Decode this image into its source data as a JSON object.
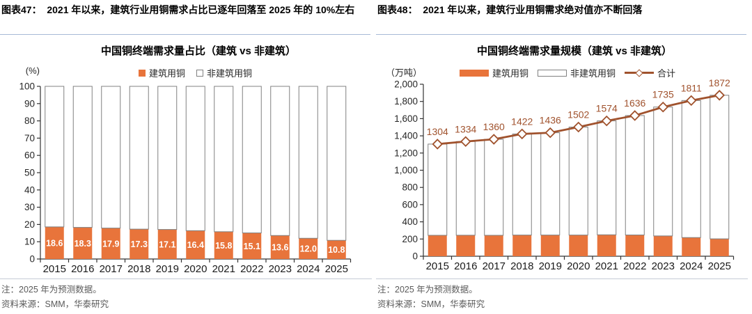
{
  "panels": [
    {
      "header": "图表47：  2021 年以来，建筑行业用铜需求占比已逐年回落至 2025 年的 10%左右",
      "chart_title": "中国铜终端需求量占比（建筑 vs 非建筑）",
      "unit_label": "(%)",
      "legend": [
        {
          "label": "建筑用铜"
        },
        {
          "label": "非建筑用铜"
        }
      ],
      "note": "注：2025 年为预测数据。",
      "source": "资料来源：SMM，华泰研究"
    },
    {
      "header": "图表48：  2021 年以来，建筑行业用铜需求绝对值亦不断回落",
      "chart_title": "中国铜终端需求量规模（建筑 vs 非建筑）",
      "unit_label": "（万吨）",
      "legend": [
        {
          "label": "建筑用铜"
        },
        {
          "label": "非建筑用铜"
        },
        {
          "label": "合计"
        }
      ],
      "note": "注：2025 年为预测数据。",
      "source": "资料来源：SMM，华泰研究"
    }
  ],
  "colors": {
    "construction_orange": "#E8743B",
    "bar_outline_gray": "#808080",
    "total_line_brown": "#A0522D",
    "header_rule_blue": "#A6BAD6",
    "note_rule_gray": "#C5CBD6",
    "axis_dark": "#333333",
    "tick_text": "#262626",
    "bar_label_white": "#FFFFFF"
  },
  "chart_data": [
    {
      "type": "bar",
      "variant": "stacked-100pct",
      "title": "中国铜终端需求量占比（建筑 vs 非建筑）",
      "categories": [
        "2015",
        "2016",
        "2017",
        "2018",
        "2019",
        "2020",
        "2021",
        "2022",
        "2023",
        "2024",
        "2025"
      ],
      "series": [
        {
          "name": "建筑用铜",
          "values": [
            18.6,
            18.3,
            17.9,
            17.3,
            17.1,
            16.4,
            15.8,
            15.1,
            13.6,
            12.0,
            10.8
          ]
        },
        {
          "name": "非建筑用铜",
          "values": [
            81.4,
            81.7,
            82.1,
            82.7,
            82.9,
            83.6,
            84.2,
            84.9,
            86.4,
            88.0,
            89.2
          ]
        }
      ],
      "bar_labels": [
        "18.6",
        "18.3",
        "17.9",
        "17.3",
        "17.1",
        "16.4",
        "15.8",
        "15.1",
        "13.6",
        "12.0",
        "10.8"
      ],
      "ylabel": "(%)",
      "ylim": [
        0,
        100
      ],
      "yticks": [
        0,
        10,
        20,
        30,
        40,
        50,
        60,
        70,
        80,
        90,
        100
      ],
      "ytick_labels": [
        "0",
        "10",
        "20",
        "30",
        "40",
        "50",
        "60",
        "70",
        "80",
        "90",
        "100"
      ],
      "grid": false,
      "legend_position": "top"
    },
    {
      "type": "bar",
      "variant": "stacked-bars-plus-line",
      "title": "中国铜终端需求量规模（建筑 vs 非建筑）",
      "categories": [
        "2015",
        "2016",
        "2017",
        "2018",
        "2019",
        "2020",
        "2021",
        "2022",
        "2023",
        "2024",
        "2025"
      ],
      "series": [
        {
          "name": "建筑用铜",
          "type": "bar",
          "values": [
            243,
            244,
            243,
            246,
            246,
            246,
            249,
            247,
            236,
            217,
            202
          ]
        },
        {
          "name": "非建筑用铜",
          "type": "bar",
          "values": [
            1061,
            1090,
            1117,
            1176,
            1190,
            1256,
            1325,
            1389,
            1499,
            1594,
            1670
          ]
        },
        {
          "name": "合计",
          "type": "line",
          "values": [
            1304,
            1334,
            1360,
            1422,
            1436,
            1502,
            1574,
            1636,
            1735,
            1811,
            1872
          ]
        }
      ],
      "line_labels": [
        "1304",
        "1334",
        "1360",
        "1422",
        "1436",
        "1502",
        "1574",
        "1636",
        "1735",
        "1811",
        "1872"
      ],
      "ylabel": "（万吨）",
      "ylim": [
        0,
        2000
      ],
      "yticks": [
        0,
        200,
        400,
        600,
        800,
        1000,
        1200,
        1400,
        1600,
        1800,
        2000
      ],
      "ytick_labels": [
        "0",
        "200",
        "400",
        "600",
        "800",
        "1,000",
        "1,200",
        "1,400",
        "1,600",
        "1,800",
        "2,000"
      ],
      "grid": false,
      "legend_position": "top"
    }
  ]
}
